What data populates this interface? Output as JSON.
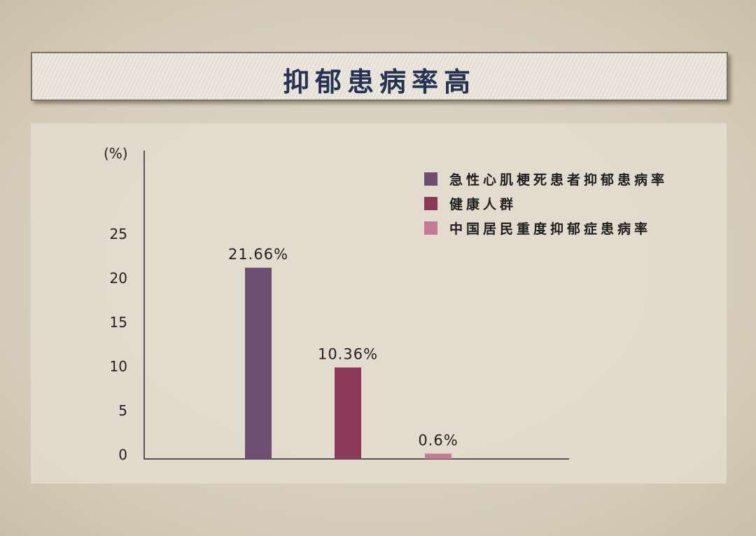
{
  "title": "抑郁患病率高",
  "chart_data": {
    "type": "bar",
    "title": "抑郁患病率高",
    "ylabel": "(%)",
    "xlabel": "",
    "ylim": [
      0,
      25
    ],
    "yticks": [
      "0",
      "5",
      "10",
      "15",
      "20",
      "25"
    ],
    "grid": false,
    "legend_position": "top-right",
    "series": [
      {
        "name": "急性心肌梗死患者抑郁患病率",
        "value": 21.66,
        "label": "21.66%",
        "color": "#6e4e72"
      },
      {
        "name": "健康人群",
        "value": 10.36,
        "label": "10.36%",
        "color": "#8a3a57"
      },
      {
        "name": "中国居民重度抑郁症患病率",
        "value": 0.6,
        "label": "0.6%",
        "color": "#c47a95"
      }
    ]
  }
}
